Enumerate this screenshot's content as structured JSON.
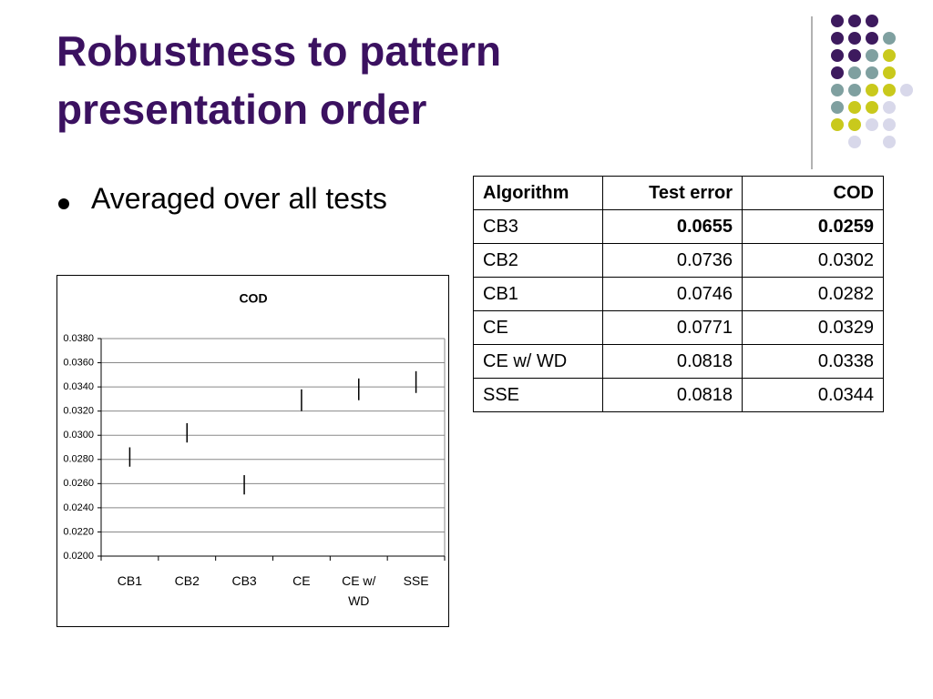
{
  "slide": {
    "title": "Robustness to pattern presentation order",
    "bullet": "Averaged over all tests"
  },
  "table": {
    "header": [
      "Algorithm",
      "Test error",
      "COD"
    ],
    "rows": [
      [
        "CB3",
        "0.0655",
        "0.0259"
      ],
      [
        "CB2",
        "0.0736",
        "0.0302"
      ],
      [
        "CB1",
        "0.0746",
        "0.0282"
      ],
      [
        "CE",
        "0.0771",
        "0.0329"
      ],
      [
        "CE w/ WD",
        "0.0818",
        "0.0338"
      ],
      [
        "SSE",
        "0.0818",
        "0.0344"
      ]
    ]
  },
  "chart_data": {
    "type": "errorbar",
    "title": "COD",
    "categories": [
      "CB1",
      "CB2",
      "CB3",
      "CE",
      "CE w/ WD",
      "SSE"
    ],
    "values": [
      0.0282,
      0.0302,
      0.0259,
      0.0329,
      0.0338,
      0.0344
    ],
    "errors": [
      0.0008,
      0.0008,
      0.0008,
      0.0009,
      0.0009,
      0.0009
    ],
    "color": "#000000",
    "ylim": [
      0.02,
      0.038
    ],
    "yticks": [
      {
        "value": 0.02,
        "label": "0.0200"
      },
      {
        "value": 0.022,
        "label": "0.0220"
      },
      {
        "value": 0.024,
        "label": "0.0240"
      },
      {
        "value": 0.026,
        "label": "0.0260"
      },
      {
        "value": 0.028,
        "label": "0.0280"
      },
      {
        "value": 0.03,
        "label": "0.0300"
      },
      {
        "value": 0.032,
        "label": "0.0320"
      },
      {
        "value": 0.034,
        "label": "0.0340"
      },
      {
        "value": 0.036,
        "label": "0.0360"
      },
      {
        "value": 0.038,
        "label": "0.0380"
      }
    ],
    "grid": true
  }
}
